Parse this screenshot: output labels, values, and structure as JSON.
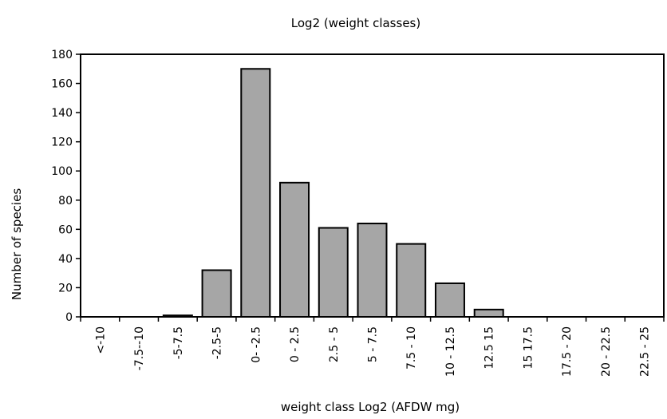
{
  "chart_data": {
    "type": "bar",
    "title": "Log2 (weight classes)",
    "xlabel": "weight class Log2 (AFDW mg)",
    "ylabel": "Number of species",
    "categories": [
      "<-10",
      "-7.5--10",
      "-5-7.5",
      "-2.5-5",
      "0- -2.5",
      "0 - 2.5",
      "2.5 - 5",
      "5 - 7.5",
      "7.5 - 10",
      "10 - 12.5",
      "12.5 15",
      "15 17.5",
      "17.5 - 20",
      "20 - 22.5",
      "22.5 - 25"
    ],
    "values": [
      0,
      0,
      1,
      32,
      170,
      92,
      61,
      64,
      50,
      23,
      5,
      0,
      0,
      0,
      0
    ],
    "ylim": [
      0,
      180
    ],
    "yticks": [
      0,
      20,
      40,
      60,
      80,
      100,
      120,
      140,
      160,
      180
    ],
    "grid": false,
    "legend": "none",
    "bar_color": "#a6a6a6",
    "bar_edge_color": "#000000"
  }
}
